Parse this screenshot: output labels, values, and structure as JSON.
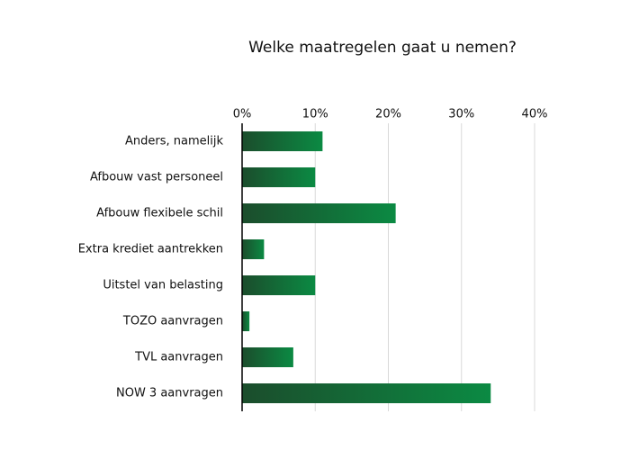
{
  "chart_data": {
    "type": "hbar",
    "title": "Welke maatregelen gaat u nemen?",
    "categories": [
      "Anders, namelijk",
      "Afbouw vast personeel",
      "Afbouw flexibele schil",
      "Extra krediet aantrekken",
      "Uitstel van belasting",
      "TOZO aanvragen",
      "TVL aanvragen",
      "NOW 3 aanvragen"
    ],
    "values": [
      11,
      10,
      21,
      3,
      10,
      1,
      7,
      34
    ],
    "colors": [
      "#1b4d2c",
      "#0b8a43"
    ],
    "xlim": [
      0,
      40
    ],
    "xticks": [
      {
        "value": 0,
        "label": "0%"
      },
      {
        "value": 10,
        "label": "10%"
      },
      {
        "value": 20,
        "label": "20%"
      },
      {
        "value": 30,
        "label": "30%"
      },
      {
        "value": 40,
        "label": "40%"
      }
    ],
    "grid": true
  }
}
